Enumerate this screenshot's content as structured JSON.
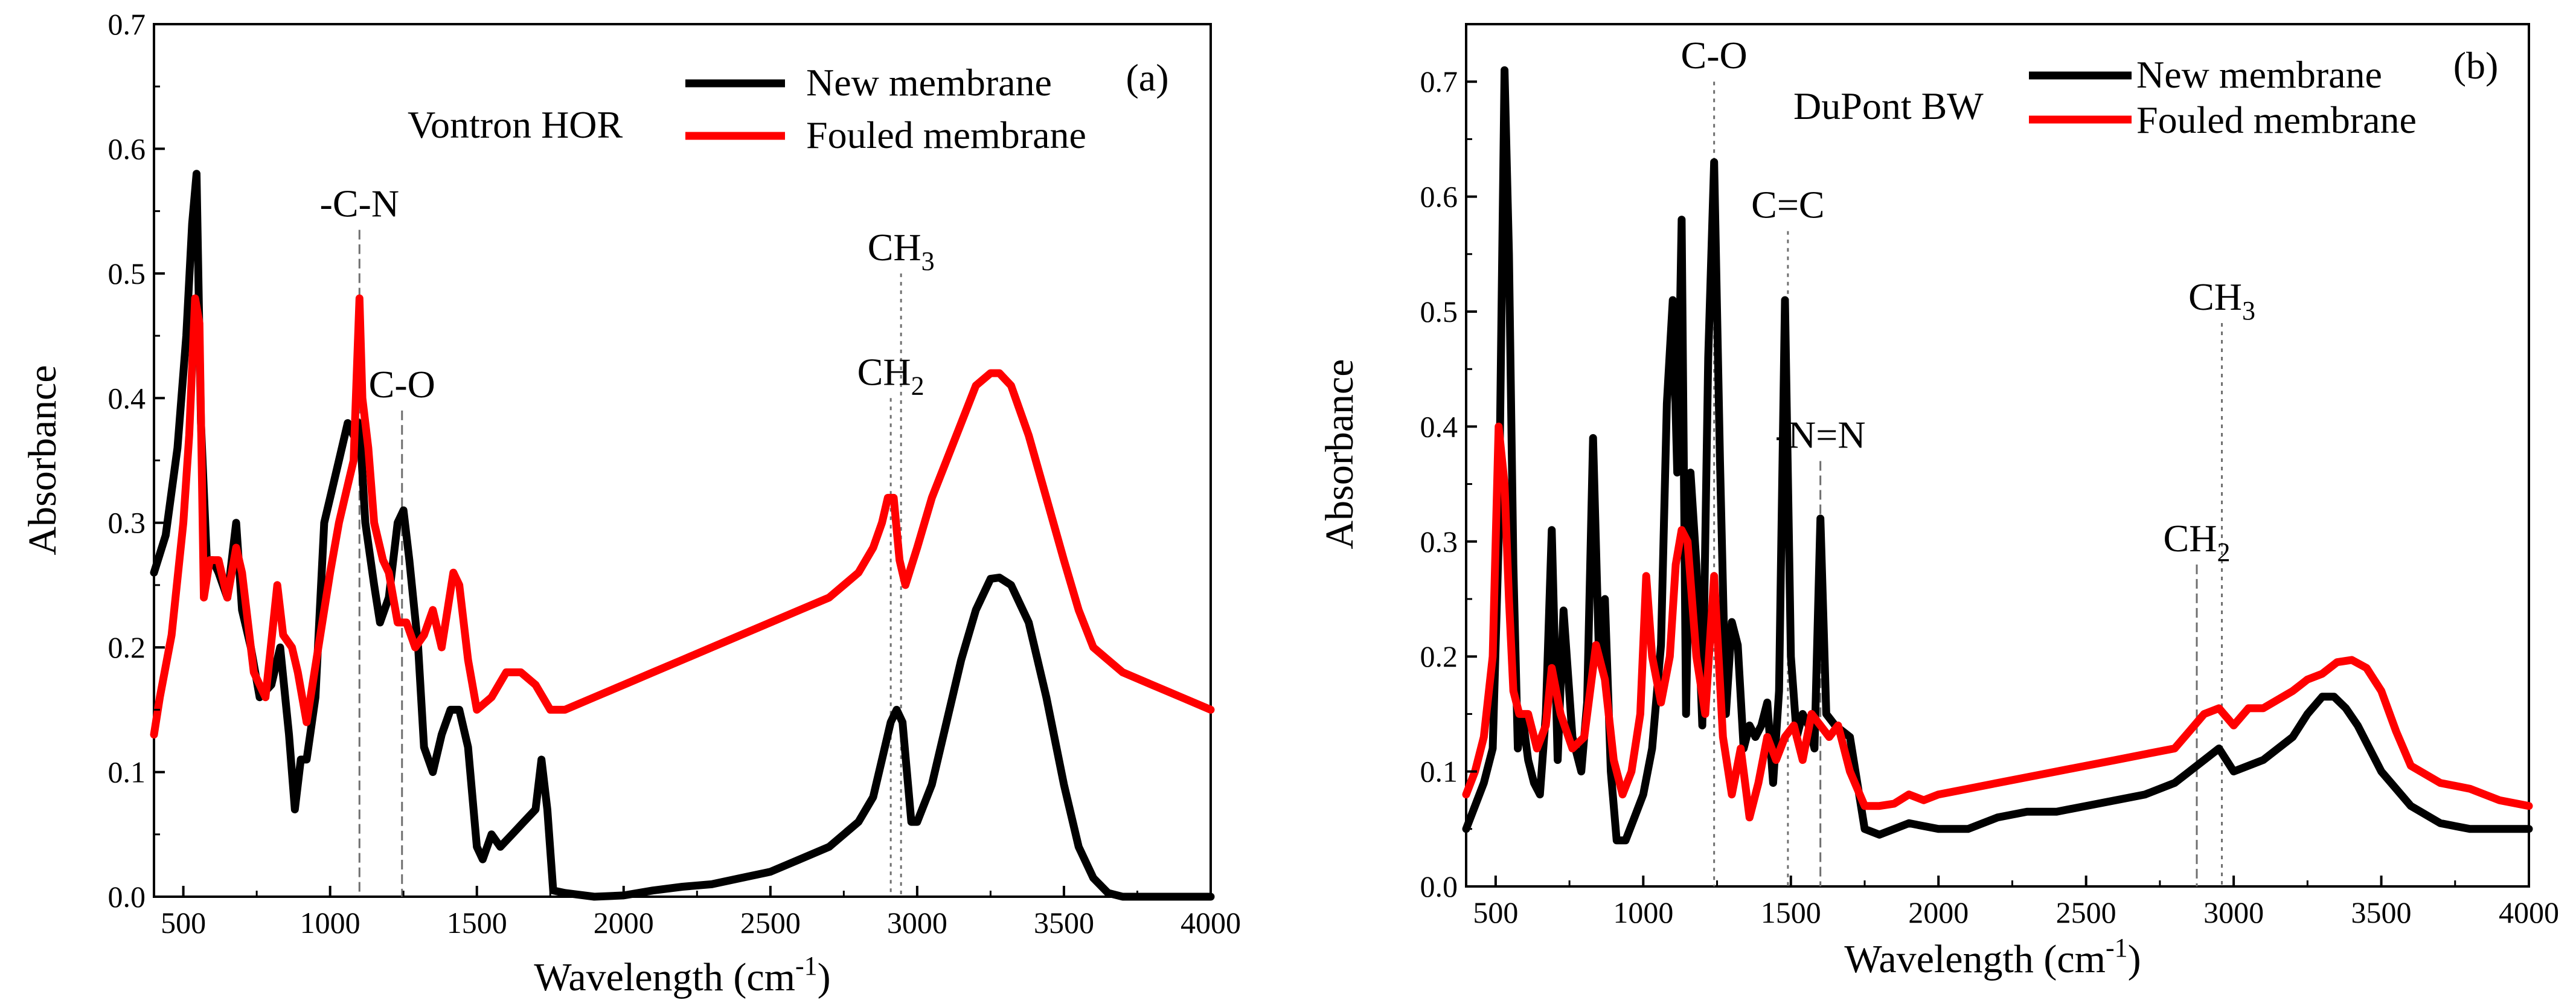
{
  "figure": {
    "colors": {
      "new": "#000000",
      "fouled": "#ff0000",
      "guide": "#6f6f6f",
      "axis": "#000000"
    }
  },
  "chart_data": [
    {
      "type": "line",
      "panel": "(a)",
      "title": "Vontron HOR",
      "xlabel": "Wavelength (cm-1)",
      "ylabel": "Absorbance",
      "xlim": [
        400,
        4000
      ],
      "ylim": [
        0,
        0.7
      ],
      "xticks": [
        "500",
        "1000",
        "1500",
        "2000",
        "2500",
        "3000",
        "3500",
        "4000"
      ],
      "yticks": [
        "0.0",
        "0.1",
        "0.2",
        "0.3",
        "0.4",
        "0.5",
        "0.6",
        "0.7"
      ],
      "legend": {
        "placement": "top-right",
        "entries": [
          "New membrane",
          "Fouled membrane"
        ]
      },
      "annotations": [
        {
          "label": "-C-N",
          "x": 1100,
          "line_top": 0.535,
          "line_style": "dash-long"
        },
        {
          "label": "C-O",
          "x": 1245,
          "line_top": 0.39,
          "line_style": "dash-long"
        },
        {
          "label": "CH",
          "sub": "2",
          "x": 2910,
          "line_top": 0.4,
          "line_style": "dot"
        },
        {
          "label": "CH",
          "sub": "3",
          "x": 2945,
          "line_top": 0.5,
          "line_style": "dot"
        }
      ],
      "series": [
        {
          "name": "New membrane",
          "x": [
            400,
            440,
            480,
            510,
            530,
            545,
            560,
            580,
            600,
            620,
            650,
            680,
            700,
            730,
            760,
            800,
            830,
            860,
            880,
            900,
            920,
            950,
            980,
            1000,
            1030,
            1060,
            1080,
            1100,
            1120,
            1150,
            1170,
            1200,
            1230,
            1250,
            1270,
            1300,
            1320,
            1350,
            1380,
            1410,
            1440,
            1470,
            1500,
            1520,
            1550,
            1580,
            1620,
            1660,
            1700,
            1720,
            1740,
            1760,
            1800,
            1900,
            2000,
            2100,
            2200,
            2300,
            2400,
            2500,
            2600,
            2700,
            2800,
            2850,
            2880,
            2910,
            2930,
            2950,
            2980,
            3000,
            3050,
            3100,
            3150,
            3200,
            3250,
            3280,
            3320,
            3380,
            3440,
            3500,
            3550,
            3600,
            3650,
            3700,
            3800,
            4000
          ],
          "y": [
            0.26,
            0.29,
            0.36,
            0.45,
            0.54,
            0.58,
            0.38,
            0.27,
            0.27,
            0.26,
            0.24,
            0.3,
            0.23,
            0.2,
            0.16,
            0.17,
            0.2,
            0.13,
            0.07,
            0.11,
            0.11,
            0.16,
            0.3,
            0.32,
            0.35,
            0.38,
            0.37,
            0.38,
            0.3,
            0.25,
            0.22,
            0.24,
            0.3,
            0.31,
            0.27,
            0.2,
            0.12,
            0.1,
            0.13,
            0.15,
            0.15,
            0.12,
            0.04,
            0.03,
            0.05,
            0.04,
            0.05,
            0.06,
            0.07,
            0.11,
            0.07,
            0.005,
            0.003,
            0.0,
            0.001,
            0.005,
            0.008,
            0.01,
            0.015,
            0.02,
            0.03,
            0.04,
            0.06,
            0.08,
            0.11,
            0.14,
            0.15,
            0.14,
            0.06,
            0.06,
            0.09,
            0.14,
            0.19,
            0.23,
            0.255,
            0.256,
            0.25,
            0.22,
            0.16,
            0.09,
            0.04,
            0.015,
            0.003,
            0.0,
            0.0,
            0.0
          ]
        },
        {
          "name": "Fouled membrane",
          "x": [
            400,
            420,
            460,
            500,
            520,
            540,
            555,
            570,
            590,
            620,
            650,
            680,
            700,
            740,
            780,
            820,
            840,
            870,
            890,
            920,
            960,
            1000,
            1030,
            1060,
            1080,
            1100,
            1110,
            1130,
            1150,
            1180,
            1200,
            1230,
            1260,
            1290,
            1320,
            1350,
            1380,
            1420,
            1440,
            1470,
            1500,
            1550,
            1600,
            1650,
            1700,
            1750,
            1800,
            1900,
            2000,
            2100,
            2200,
            2300,
            2400,
            2500,
            2600,
            2700,
            2800,
            2850,
            2880,
            2900,
            2920,
            2940,
            2960,
            3000,
            3050,
            3100,
            3150,
            3200,
            3250,
            3280,
            3320,
            3380,
            3440,
            3500,
            3550,
            3600,
            3650,
            3700,
            3800,
            3900,
            4000
          ],
          "y": [
            0.13,
            0.16,
            0.21,
            0.3,
            0.37,
            0.48,
            0.46,
            0.24,
            0.27,
            0.27,
            0.24,
            0.28,
            0.26,
            0.18,
            0.16,
            0.25,
            0.21,
            0.2,
            0.18,
            0.14,
            0.2,
            0.26,
            0.3,
            0.33,
            0.35,
            0.48,
            0.4,
            0.36,
            0.3,
            0.27,
            0.26,
            0.22,
            0.22,
            0.2,
            0.21,
            0.23,
            0.2,
            0.26,
            0.25,
            0.19,
            0.15,
            0.16,
            0.18,
            0.18,
            0.17,
            0.15,
            0.15,
            0.16,
            0.17,
            0.18,
            0.19,
            0.2,
            0.21,
            0.22,
            0.23,
            0.24,
            0.26,
            0.28,
            0.3,
            0.32,
            0.32,
            0.27,
            0.25,
            0.28,
            0.32,
            0.35,
            0.38,
            0.41,
            0.42,
            0.42,
            0.41,
            0.37,
            0.32,
            0.27,
            0.23,
            0.2,
            0.19,
            0.18,
            0.17,
            0.16,
            0.15
          ]
        }
      ]
    },
    {
      "type": "line",
      "panel": "(b)",
      "title": "DuPont BW",
      "xlabel": "Wavelength (cm-1)",
      "ylabel": "Absorbance",
      "xlim": [
        400,
        4000
      ],
      "ylim": [
        0,
        0.75
      ],
      "xticks": [
        "500",
        "1000",
        "1500",
        "2000",
        "2500",
        "3000",
        "3500",
        "4000"
      ],
      "yticks": [
        "0.0",
        "0.1",
        "0.2",
        "0.3",
        "0.4",
        "0.5",
        "0.6",
        "0.7"
      ],
      "legend": {
        "placement": "top-right",
        "entries": [
          "New membrane",
          "Fouled membrane"
        ]
      },
      "annotations": [
        {
          "label": "C-O",
          "x": 1240,
          "line_top": 0.7,
          "line_style": "dot"
        },
        {
          "label": "C=C",
          "x": 1490,
          "line_top": 0.57,
          "line_style": "dot"
        },
        {
          "label": "-N=N",
          "x": 1600,
          "line_top": 0.37,
          "line_style": "dash-long"
        },
        {
          "label": "CH",
          "sub": "2",
          "x": 2875,
          "line_top": 0.28,
          "line_style": "dash-long"
        },
        {
          "label": "CH",
          "sub": "3",
          "x": 2960,
          "line_top": 0.49,
          "line_style": "dot"
        }
      ],
      "series": [
        {
          "name": "New membrane",
          "x": [
            400,
            430,
            460,
            490,
            510,
            530,
            545,
            560,
            575,
            590,
            610,
            630,
            650,
            670,
            690,
            710,
            730,
            760,
            790,
            810,
            830,
            850,
            870,
            890,
            910,
            940,
            970,
            1000,
            1030,
            1060,
            1080,
            1100,
            1115,
            1130,
            1145,
            1160,
            1180,
            1200,
            1220,
            1240,
            1260,
            1280,
            1300,
            1320,
            1340,
            1360,
            1380,
            1400,
            1420,
            1440,
            1460,
            1480,
            1500,
            1520,
            1540,
            1560,
            1580,
            1600,
            1620,
            1650,
            1700,
            1750,
            1800,
            1850,
            1900,
            2000,
            2100,
            2200,
            2300,
            2400,
            2500,
            2600,
            2700,
            2800,
            2850,
            2900,
            2950,
            3000,
            3100,
            3200,
            3250,
            3300,
            3340,
            3380,
            3420,
            3500,
            3600,
            3700,
            3800,
            4000
          ],
          "y": [
            0.05,
            0.07,
            0.09,
            0.12,
            0.3,
            0.71,
            0.55,
            0.28,
            0.12,
            0.15,
            0.11,
            0.09,
            0.08,
            0.15,
            0.31,
            0.11,
            0.24,
            0.13,
            0.1,
            0.16,
            0.39,
            0.2,
            0.25,
            0.1,
            0.04,
            0.04,
            0.06,
            0.08,
            0.12,
            0.21,
            0.42,
            0.51,
            0.36,
            0.58,
            0.15,
            0.36,
            0.28,
            0.14,
            0.46,
            0.63,
            0.37,
            0.15,
            0.23,
            0.21,
            0.12,
            0.14,
            0.13,
            0.14,
            0.16,
            0.09,
            0.17,
            0.51,
            0.2,
            0.13,
            0.15,
            0.14,
            0.12,
            0.32,
            0.15,
            0.14,
            0.13,
            0.05,
            0.045,
            0.05,
            0.055,
            0.05,
            0.05,
            0.06,
            0.065,
            0.065,
            0.07,
            0.075,
            0.08,
            0.09,
            0.1,
            0.11,
            0.12,
            0.1,
            0.11,
            0.13,
            0.15,
            0.165,
            0.165,
            0.155,
            0.14,
            0.1,
            0.07,
            0.055,
            0.05,
            0.05
          ]
        },
        {
          "name": "Fouled membrane",
          "x": [
            400,
            430,
            460,
            490,
            510,
            530,
            545,
            560,
            580,
            610,
            640,
            670,
            690,
            720,
            760,
            800,
            840,
            870,
            900,
            930,
            960,
            990,
            1010,
            1030,
            1060,
            1090,
            1110,
            1130,
            1150,
            1180,
            1210,
            1240,
            1270,
            1300,
            1330,
            1360,
            1390,
            1420,
            1450,
            1480,
            1510,
            1540,
            1570,
            1600,
            1630,
            1660,
            1700,
            1750,
            1800,
            1850,
            1900,
            1950,
            2000,
            2100,
            2200,
            2300,
            2400,
            2500,
            2600,
            2700,
            2800,
            2850,
            2900,
            2950,
            3000,
            3050,
            3100,
            3200,
            3250,
            3300,
            3350,
            3400,
            3450,
            3500,
            3550,
            3600,
            3700,
            3800,
            3900,
            4000
          ],
          "y": [
            0.08,
            0.1,
            0.13,
            0.2,
            0.4,
            0.35,
            0.25,
            0.17,
            0.15,
            0.15,
            0.12,
            0.14,
            0.19,
            0.15,
            0.12,
            0.13,
            0.21,
            0.18,
            0.11,
            0.08,
            0.1,
            0.15,
            0.27,
            0.2,
            0.16,
            0.2,
            0.28,
            0.31,
            0.3,
            0.2,
            0.15,
            0.27,
            0.13,
            0.08,
            0.12,
            0.06,
            0.09,
            0.13,
            0.11,
            0.13,
            0.14,
            0.11,
            0.15,
            0.14,
            0.13,
            0.14,
            0.1,
            0.07,
            0.07,
            0.072,
            0.08,
            0.075,
            0.08,
            0.085,
            0.09,
            0.095,
            0.1,
            0.105,
            0.11,
            0.115,
            0.12,
            0.135,
            0.15,
            0.155,
            0.14,
            0.155,
            0.155,
            0.17,
            0.18,
            0.185,
            0.195,
            0.197,
            0.19,
            0.17,
            0.135,
            0.105,
            0.09,
            0.085,
            0.075,
            0.07
          ]
        }
      ]
    }
  ]
}
